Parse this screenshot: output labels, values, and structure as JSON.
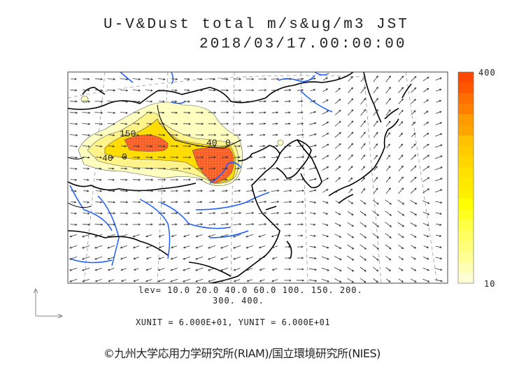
{
  "header": {
    "title": "U-V&Dust total m/s&ug/m3 JST",
    "datetime": "2018/03/17.00:00:00"
  },
  "map": {
    "contour_labels": [
      "150",
      "40",
      "40",
      "0",
      "0"
    ],
    "coast_color": "#000000",
    "river_color": "#1a5cff",
    "dust_colors": {
      "low": "#ffffb0",
      "mid": "#ffee00",
      "high": "#ff5a1e"
    }
  },
  "colorbar": {
    "max_label": "400",
    "min_label": "10",
    "bands": [
      "#ff4800",
      "#ff5600",
      "#ff6e00",
      "#ff8000",
      "#ff9a00",
      "#ffa400",
      "#ffc200",
      "#ffcc00",
      "#ffd600",
      "#ffe000",
      "#ffe800",
      "#ffee00",
      "#ffff00",
      "#ffff22",
      "#ffff44",
      "#ffff60",
      "#ffff78",
      "#ffff94",
      "#ffffb4",
      "#ffffd4"
    ]
  },
  "legend": {
    "levels_line1": "lev= 10.0 20.0 40.0 60.0 100. 150. 200.",
    "levels_line2": "300. 400.",
    "units": "XUNIT = 6.000E+01, YUNIT = 6.000E+01"
  },
  "footer": {
    "copyright": "©九州大学応用力学研究所(RIAM)/国立環境研究所(NIES)"
  }
}
